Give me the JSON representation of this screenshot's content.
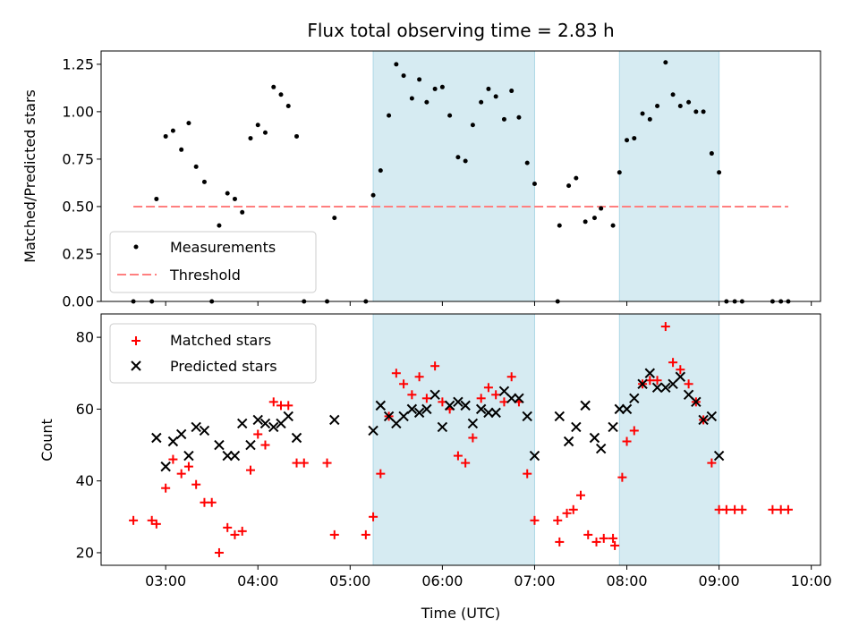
{
  "chart_data": {
    "title": "Flux total observing time = 2.83 h",
    "xlabel": "Time (UTC)",
    "x_range_hours": [
      2.3,
      10.1
    ],
    "x_ticks": [
      {
        "h": 3,
        "label": "03:00"
      },
      {
        "h": 4,
        "label": "04:00"
      },
      {
        "h": 5,
        "label": "05:00"
      },
      {
        "h": 6,
        "label": "06:00"
      },
      {
        "h": 7,
        "label": "07:00"
      },
      {
        "h": 8,
        "label": "08:00"
      },
      {
        "h": 9,
        "label": "09:00"
      },
      {
        "h": 10,
        "label": "10:00"
      }
    ],
    "shaded_intervals": [
      [
        5.25,
        7.0
      ],
      [
        7.92,
        9.0
      ]
    ],
    "shade_color": "#add8e6",
    "panels": [
      {
        "type": "scatter",
        "ylabel": "Matched/Predicted stars",
        "ylim": [
          0.0,
          1.32
        ],
        "y_ticks": [
          {
            "v": 0.0,
            "label": "0.00"
          },
          {
            "v": 0.25,
            "label": "0.25"
          },
          {
            "v": 0.5,
            "label": "0.50"
          },
          {
            "v": 0.75,
            "label": "0.75"
          },
          {
            "v": 1.0,
            "label": "1.00"
          },
          {
            "v": 1.25,
            "label": "1.25"
          }
        ],
        "legend": {
          "position": "lower left",
          "items": [
            {
              "label": "Measurements",
              "marker": "dot",
              "color": "#000000"
            },
            {
              "label": "Threshold",
              "marker": "dashed-line",
              "color": "#ff7f7f"
            }
          ]
        },
        "threshold": {
          "value": 0.5,
          "x_range": [
            2.65,
            9.75
          ],
          "color": "#ff7f7f"
        },
        "measurements": [
          [
            2.65,
            0.0
          ],
          [
            2.85,
            0.0
          ],
          [
            2.9,
            0.54
          ],
          [
            3.0,
            0.87
          ],
          [
            3.08,
            0.9
          ],
          [
            3.17,
            0.8
          ],
          [
            3.25,
            0.94
          ],
          [
            3.33,
            0.71
          ],
          [
            3.42,
            0.63
          ],
          [
            3.5,
            0.0
          ],
          [
            3.58,
            0.4
          ],
          [
            3.67,
            0.57
          ],
          [
            3.75,
            0.54
          ],
          [
            3.83,
            0.47
          ],
          [
            3.92,
            0.86
          ],
          [
            4.0,
            0.93
          ],
          [
            4.08,
            0.89
          ],
          [
            4.17,
            1.13
          ],
          [
            4.25,
            1.09
          ],
          [
            4.33,
            1.03
          ],
          [
            4.42,
            0.87
          ],
          [
            4.5,
            0.0
          ],
          [
            4.75,
            0.0
          ],
          [
            4.83,
            0.44
          ],
          [
            5.17,
            0.0
          ],
          [
            5.25,
            0.56
          ],
          [
            5.33,
            0.69
          ],
          [
            5.42,
            0.98
          ],
          [
            5.5,
            1.25
          ],
          [
            5.58,
            1.19
          ],
          [
            5.67,
            1.07
          ],
          [
            5.75,
            1.17
          ],
          [
            5.83,
            1.05
          ],
          [
            5.92,
            1.12
          ],
          [
            6.0,
            1.13
          ],
          [
            6.08,
            0.98
          ],
          [
            6.17,
            0.76
          ],
          [
            6.25,
            0.74
          ],
          [
            6.33,
            0.93
          ],
          [
            6.42,
            1.05
          ],
          [
            6.5,
            1.12
          ],
          [
            6.58,
            1.08
          ],
          [
            6.67,
            0.96
          ],
          [
            6.75,
            1.11
          ],
          [
            6.83,
            0.97
          ],
          [
            6.92,
            0.73
          ],
          [
            7.0,
            0.62
          ],
          [
            7.25,
            0.0
          ],
          [
            7.27,
            0.4
          ],
          [
            7.37,
            0.61
          ],
          [
            7.45,
            0.65
          ],
          [
            7.55,
            0.42
          ],
          [
            7.65,
            0.44
          ],
          [
            7.72,
            0.49
          ],
          [
            7.85,
            0.4
          ],
          [
            7.92,
            0.68
          ],
          [
            8.0,
            0.85
          ],
          [
            8.08,
            0.86
          ],
          [
            8.17,
            0.99
          ],
          [
            8.25,
            0.96
          ],
          [
            8.33,
            1.03
          ],
          [
            8.42,
            1.26
          ],
          [
            8.5,
            1.09
          ],
          [
            8.58,
            1.03
          ],
          [
            8.67,
            1.05
          ],
          [
            8.75,
            1.0
          ],
          [
            8.83,
            1.0
          ],
          [
            8.92,
            0.78
          ],
          [
            9.0,
            0.68
          ],
          [
            9.08,
            0.0
          ],
          [
            9.17,
            0.0
          ],
          [
            9.25,
            0.0
          ],
          [
            9.58,
            0.0
          ],
          [
            9.67,
            0.0
          ],
          [
            9.75,
            0.0
          ]
        ]
      },
      {
        "type": "scatter",
        "ylabel": "Count",
        "ylim": [
          16.5,
          86.5
        ],
        "y_ticks": [
          {
            "v": 20,
            "label": "20"
          },
          {
            "v": 40,
            "label": "40"
          },
          {
            "v": 60,
            "label": "60"
          },
          {
            "v": 80,
            "label": "80"
          }
        ],
        "legend": {
          "position": "upper left",
          "items": [
            {
              "label": "Matched stars",
              "marker": "plus",
              "color": "#ff0000"
            },
            {
              "label": "Predicted stars",
              "marker": "x",
              "color": "#000000"
            }
          ]
        },
        "matched_stars": [
          [
            2.65,
            29
          ],
          [
            2.85,
            29
          ],
          [
            2.9,
            28
          ],
          [
            3.0,
            38
          ],
          [
            3.08,
            46
          ],
          [
            3.17,
            42
          ],
          [
            3.25,
            44
          ],
          [
            3.33,
            39
          ],
          [
            3.42,
            34
          ],
          [
            3.5,
            34
          ],
          [
            3.58,
            20
          ],
          [
            3.67,
            27
          ],
          [
            3.75,
            25
          ],
          [
            3.83,
            26
          ],
          [
            3.92,
            43
          ],
          [
            4.0,
            53
          ],
          [
            4.08,
            50
          ],
          [
            4.17,
            62
          ],
          [
            4.25,
            61
          ],
          [
            4.33,
            61
          ],
          [
            4.42,
            45
          ],
          [
            4.5,
            45
          ],
          [
            4.75,
            45
          ],
          [
            4.83,
            25
          ],
          [
            5.17,
            25
          ],
          [
            5.25,
            30
          ],
          [
            5.33,
            42
          ],
          [
            5.42,
            58
          ],
          [
            5.5,
            70
          ],
          [
            5.58,
            67
          ],
          [
            5.67,
            64
          ],
          [
            5.75,
            69
          ],
          [
            5.83,
            63
          ],
          [
            5.92,
            72
          ],
          [
            6.0,
            62
          ],
          [
            6.08,
            60
          ],
          [
            6.17,
            47
          ],
          [
            6.25,
            45
          ],
          [
            6.33,
            52
          ],
          [
            6.42,
            63
          ],
          [
            6.5,
            66
          ],
          [
            6.58,
            64
          ],
          [
            6.67,
            62
          ],
          [
            6.75,
            69
          ],
          [
            6.83,
            62
          ],
          [
            6.92,
            42
          ],
          [
            7.0,
            29
          ],
          [
            7.25,
            29
          ],
          [
            7.27,
            23
          ],
          [
            7.35,
            31
          ],
          [
            7.42,
            32
          ],
          [
            7.5,
            36
          ],
          [
            7.58,
            25
          ],
          [
            7.67,
            23
          ],
          [
            7.75,
            24
          ],
          [
            7.85,
            24
          ],
          [
            7.87,
            22
          ],
          [
            7.95,
            41
          ],
          [
            8.0,
            51
          ],
          [
            8.08,
            54
          ],
          [
            8.17,
            67
          ],
          [
            8.25,
            68
          ],
          [
            8.33,
            68
          ],
          [
            8.42,
            83
          ],
          [
            8.5,
            73
          ],
          [
            8.58,
            71
          ],
          [
            8.67,
            67
          ],
          [
            8.75,
            62
          ],
          [
            8.83,
            57
          ],
          [
            8.92,
            45
          ],
          [
            9.0,
            32
          ],
          [
            9.08,
            32
          ],
          [
            9.17,
            32
          ],
          [
            9.25,
            32
          ],
          [
            9.58,
            32
          ],
          [
            9.67,
            32
          ],
          [
            9.75,
            32
          ]
        ],
        "predicted_stars": [
          [
            2.9,
            52
          ],
          [
            3.0,
            44
          ],
          [
            3.08,
            51
          ],
          [
            3.17,
            53
          ],
          [
            3.25,
            47
          ],
          [
            3.33,
            55
          ],
          [
            3.42,
            54
          ],
          [
            3.58,
            50
          ],
          [
            3.67,
            47
          ],
          [
            3.75,
            47
          ],
          [
            3.83,
            56
          ],
          [
            3.92,
            50
          ],
          [
            4.0,
            57
          ],
          [
            4.08,
            56
          ],
          [
            4.17,
            55
          ],
          [
            4.25,
            56
          ],
          [
            4.33,
            58
          ],
          [
            4.42,
            52
          ],
          [
            4.83,
            57
          ],
          [
            5.25,
            54
          ],
          [
            5.33,
            61
          ],
          [
            5.42,
            58
          ],
          [
            5.5,
            56
          ],
          [
            5.58,
            58
          ],
          [
            5.67,
            60
          ],
          [
            5.75,
            59
          ],
          [
            5.83,
            60
          ],
          [
            5.92,
            64
          ],
          [
            6.0,
            55
          ],
          [
            6.08,
            61
          ],
          [
            6.17,
            62
          ],
          [
            6.25,
            61
          ],
          [
            6.33,
            56
          ],
          [
            6.42,
            60
          ],
          [
            6.5,
            59
          ],
          [
            6.58,
            59
          ],
          [
            6.67,
            65
          ],
          [
            6.75,
            63
          ],
          [
            6.83,
            63
          ],
          [
            6.92,
            58
          ],
          [
            7.0,
            47
          ],
          [
            7.27,
            58
          ],
          [
            7.37,
            51
          ],
          [
            7.45,
            55
          ],
          [
            7.55,
            61
          ],
          [
            7.65,
            52
          ],
          [
            7.72,
            49
          ],
          [
            7.85,
            55
          ],
          [
            7.92,
            60
          ],
          [
            8.0,
            60
          ],
          [
            8.08,
            63
          ],
          [
            8.17,
            67
          ],
          [
            8.25,
            70
          ],
          [
            8.33,
            66
          ],
          [
            8.42,
            66
          ],
          [
            8.5,
            67
          ],
          [
            8.58,
            69
          ],
          [
            8.67,
            64
          ],
          [
            8.75,
            62
          ],
          [
            8.83,
            57
          ],
          [
            8.92,
            58
          ],
          [
            9.0,
            47
          ]
        ]
      }
    ]
  }
}
